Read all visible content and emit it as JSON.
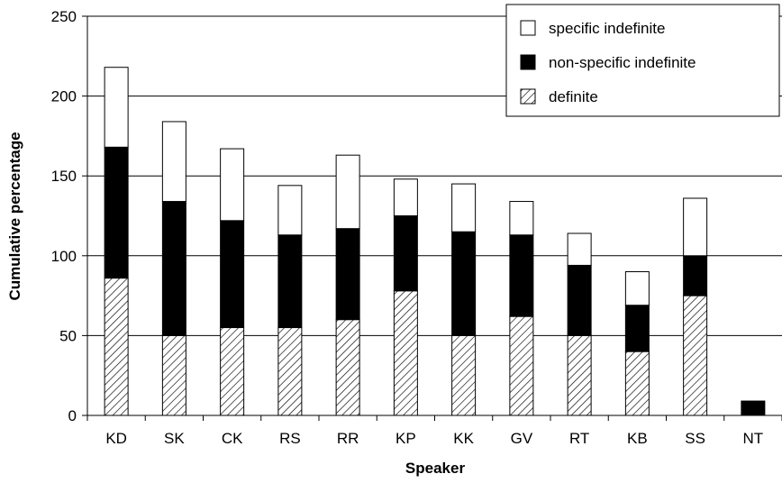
{
  "chart_data": {
    "type": "bar",
    "stacked": true,
    "categories": [
      "KD",
      "SK",
      "CK",
      "RS",
      "RR",
      "KP",
      "KK",
      "GV",
      "RT",
      "KB",
      "SS",
      "NT"
    ],
    "series": [
      {
        "name": "definite",
        "fill": "hatched",
        "values": [
          86,
          50,
          55,
          55,
          60,
          78,
          50,
          62,
          50,
          40,
          75,
          0
        ]
      },
      {
        "name": "non-specific indefinite",
        "fill": "#000000",
        "values": [
          82,
          84,
          67,
          58,
          57,
          47,
          65,
          51,
          44,
          29,
          25,
          9
        ]
      },
      {
        "name": "specific indefinite",
        "fill": "#ffffff",
        "values": [
          50,
          50,
          45,
          31,
          46,
          23,
          30,
          21,
          20,
          21,
          36,
          0
        ]
      }
    ],
    "legend_order": [
      "specific indefinite",
      "non-specific indefinite",
      "definite"
    ],
    "xlabel": "Speaker",
    "ylabel": "Cumulative percentage",
    "ylim": [
      0,
      250
    ],
    "yticks": [
      0,
      50,
      100,
      150,
      200,
      250
    ],
    "grid": "horizontal",
    "legend_position": "top-right"
  }
}
